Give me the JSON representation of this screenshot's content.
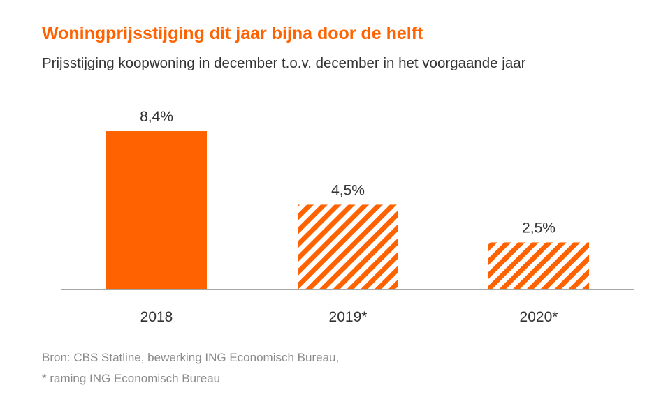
{
  "title": "Woningprijsstijging dit jaar bijna door de helft",
  "subtitle": "Prijsstijging koopwoning in december t.o.v. december in het voorgaande jaar",
  "source": {
    "line1": "Bron: CBS Statline, bewerking ING Economisch Bureau,",
    "line2": "* raming ING Economisch Bureau"
  },
  "colors": {
    "accent": "#FF6200",
    "axis": "#a6a6a6",
    "text": "#333333"
  },
  "chart_data": {
    "type": "bar",
    "categories": [
      "2018",
      "2019*",
      "2020*"
    ],
    "values": [
      8.4,
      4.5,
      2.5
    ],
    "value_labels": [
      "8,4%",
      "4,5%",
      "2,5%"
    ],
    "styles": [
      "solid",
      "hatched",
      "hatched"
    ],
    "title": "Woningprijsstijging dit jaar bijna door de helft",
    "subtitle": "Prijsstijging koopwoning in december t.o.v. december in het voorgaande jaar",
    "xlabel": "",
    "ylabel": "",
    "ylim": [
      0,
      8.4
    ],
    "grid": false,
    "legend": "none"
  }
}
